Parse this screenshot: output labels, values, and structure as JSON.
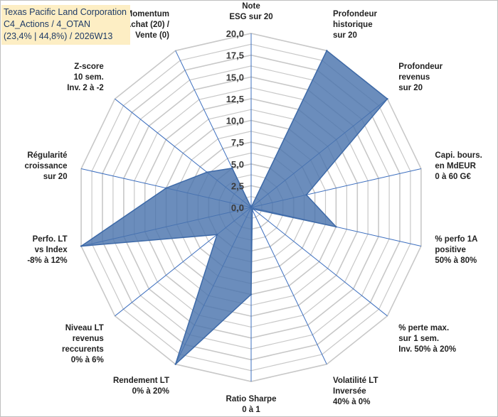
{
  "chart_data": {
    "type": "radar",
    "title_lines": [
      "Texas Pacific Land Corporation",
      "C4_Actions / 4_OTAN",
      "(23,4% | 44,8%) / 2026W13"
    ],
    "range": [
      0,
      20
    ],
    "ticks": [
      "0,0",
      "2,5",
      "5,0",
      "7,5",
      "10,0",
      "12,5",
      "15,0",
      "17,5",
      "20,0"
    ],
    "tick_values": [
      0,
      2.5,
      5,
      7.5,
      10,
      12.5,
      15,
      17.5,
      20
    ],
    "axes": [
      {
        "label": [
          "Note",
          "ESG sur 20"
        ],
        "value": 0
      },
      {
        "label": [
          "Profondeur",
          "historique",
          "sur 20"
        ],
        "value": 20
      },
      {
        "label": [
          "Profondeur",
          "revenus",
          "sur 20"
        ],
        "value": 20
      },
      {
        "label": [
          "Capi. bours.",
          "en MdEUR",
          "0 à 60 G€"
        ],
        "value": 6.5
      },
      {
        "label": [
          "% perfo 1A",
          "positive",
          "50% à 80%"
        ],
        "value": 10
      },
      {
        "label": [
          "% perte max.",
          "sur 1 sem.",
          "Inv. 50% à 20%"
        ],
        "value": 0.3
      },
      {
        "label": [
          "Volatilité LT",
          "Inversée",
          "40% à 0%"
        ],
        "value": 0.3
      },
      {
        "label": [
          "Ratio Sharpe",
          "0 à 1"
        ],
        "value": 10
      },
      {
        "label": [
          "Rendement LT",
          "0% à 20%"
        ],
        "value": 20
      },
      {
        "label": [
          "Niveau LT",
          "revenus",
          "reccurents",
          "0% à 6%"
        ],
        "value": 5
      },
      {
        "label": [
          "Perfo. LT",
          "vs Index",
          "-8% à 12%"
        ],
        "value": 20
      },
      {
        "label": [
          "Régularité",
          "croissance",
          "sur 20"
        ],
        "value": 10
      },
      {
        "label": [
          "Z-score",
          "10 sem.",
          "Inv. 2 à -2"
        ],
        "value": 6.5
      },
      {
        "label": [
          "Momentum",
          "Achat (20) /",
          "Vente (0)"
        ],
        "value": 5
      }
    ],
    "series_color": "#4a74ad",
    "grid_color": "#c8c8c8",
    "spoke_color": "#3d6fbf"
  }
}
